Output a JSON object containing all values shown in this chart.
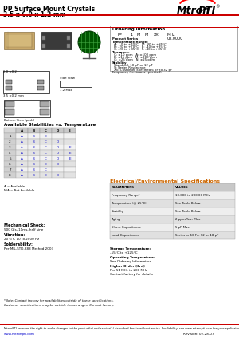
{
  "title_line1": "PP Surface Mount Crystals",
  "title_line2": "3.5 x 6.0 x 1.2 mm",
  "bg_color": "#ffffff",
  "header_bar_color": "#cc0000",
  "table_header_bg": "#c8c8c8",
  "orange_text": "#cc6600",
  "section_title": "Electrical/Environmental Specifications",
  "ordering_title": "Ordering Information",
  "stab_title": "Available Stabilities vs. Temperature",
  "spec_table": [
    [
      "PARAMETERS",
      "VALUES"
    ],
    [
      "Frequency Range*",
      "10.000 to 200.00 MHz"
    ],
    [
      "Temperature (@ 25°C)",
      "See Table Below"
    ],
    [
      "Stability",
      "See Table Below"
    ],
    [
      "Aging",
      "2 ppm/Year Max"
    ],
    [
      "Shunt Capacitance",
      "5 pF Max"
    ],
    [
      "Load Capacitance",
      "Series or 10 Fc, 12 or 18 pF"
    ]
  ],
  "footer_text": "MtronPTI reserves the right to make changes to the product(s) and service(s) described herein without notice. For liability, see www.mtronpti.com for your application before using this product.",
  "revision": "Revision: 02-28-07",
  "website": "www.mtronpti.com"
}
